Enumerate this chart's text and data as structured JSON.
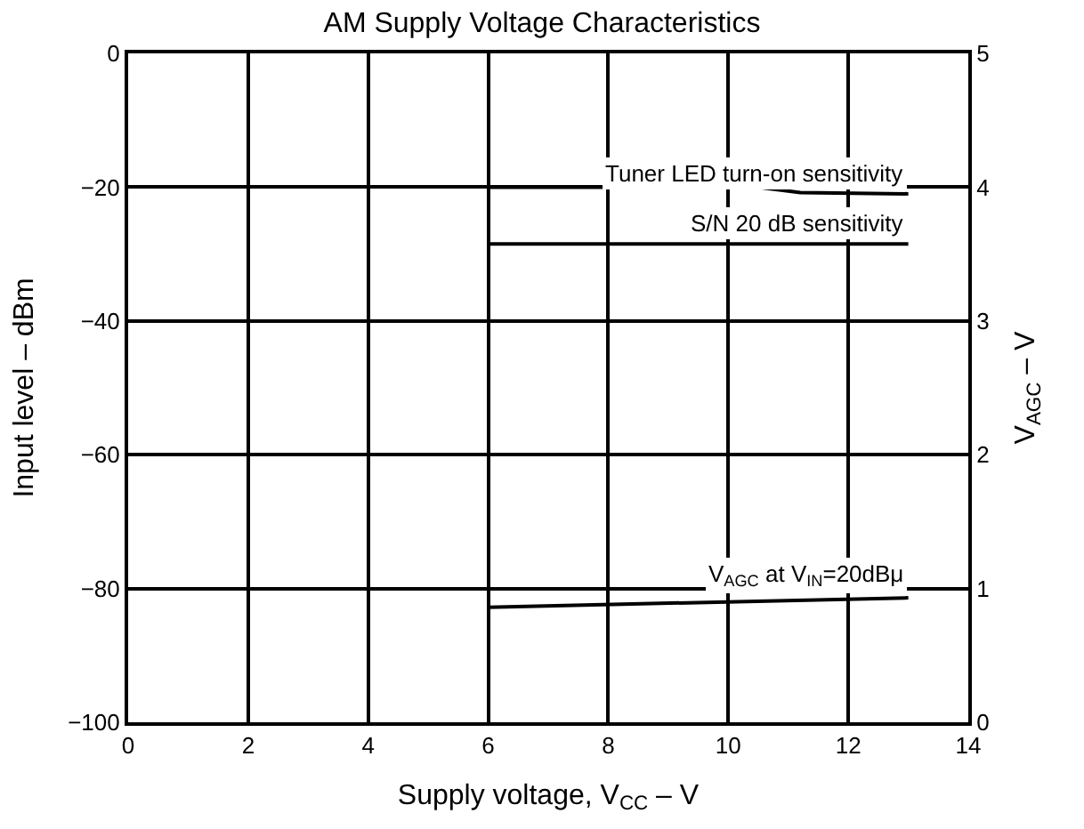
{
  "chart_data": {
    "type": "line",
    "title": "AM Supply Voltage Characteristics",
    "xlabel": "Supply voltage, V$_{CC}$ – V",
    "ylabel": "Input level – dBm",
    "y2label": "V$_{AGC}$ – V",
    "xlim": [
      0,
      14
    ],
    "xticks": [
      0,
      2,
      4,
      6,
      8,
      10,
      12,
      14
    ],
    "ylim": [
      -100,
      0
    ],
    "yticks": [
      -100,
      -80,
      -60,
      -40,
      -20,
      0
    ],
    "y2lim": [
      0,
      5
    ],
    "y2ticks": [
      0,
      1,
      2,
      3,
      4,
      5
    ],
    "series": [
      {
        "name": "Tuner LED turn-on sensitivity",
        "color": "#000000",
        "x": [
          6,
          10.5,
          11.2,
          13
        ],
        "values": [
          -20,
          -20,
          -20.8,
          -21
        ]
      },
      {
        "name": "S/N 20 dB sensitivity",
        "color": "#000000",
        "x": [
          6,
          13
        ],
        "values": [
          -28.5,
          -28.5
        ]
      },
      {
        "name": "V$_{AGC}$ at V$_{IN}$=20dBμ",
        "color": "#000000",
        "axis": "y2",
        "x": [
          6,
          13
        ],
        "values": [
          0.86,
          0.93
        ]
      }
    ],
    "grid": true,
    "legend": false,
    "marker": "none",
    "line_style": "solid"
  }
}
